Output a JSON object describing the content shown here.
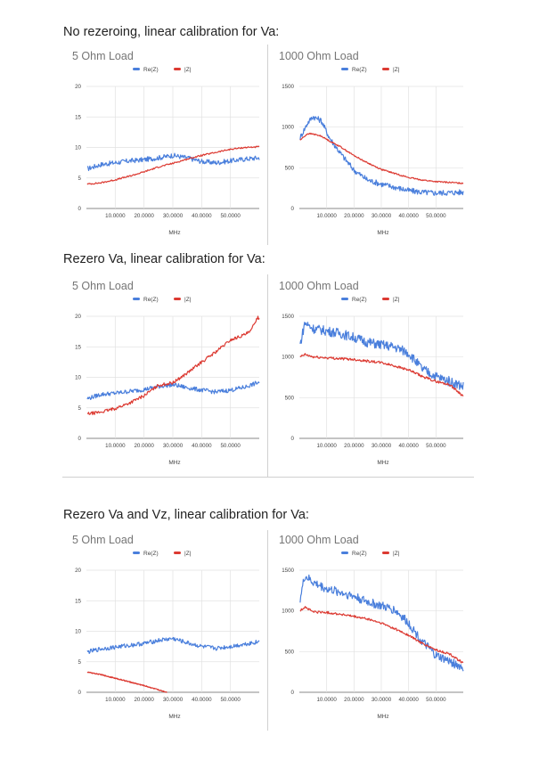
{
  "sections": [
    {
      "heading": "No rezeroing, linear calibration for Va:"
    },
    {
      "heading": "Rezero Va, linear calibration for Va:"
    },
    {
      "heading": "Rezero Va and Vz, linear calibration for Va:"
    }
  ],
  "colors": {
    "re": "#4a7fdc",
    "abs": "#dc3a32",
    "grid": "#e2e2e2",
    "axis": "#888888"
  },
  "chart_data": [
    {
      "type": "line",
      "title": "5 Ohm Load",
      "xlabel": "MHz",
      "ylabel": "",
      "xlim": [
        0,
        60
      ],
      "ylim": [
        0,
        20
      ],
      "yticks": [
        "0",
        "5",
        "10",
        "15",
        "20"
      ],
      "xticks": [
        "10.0000",
        "20.0000",
        "30.0000",
        "40.0000",
        "50.0000"
      ],
      "legend": "top-center",
      "series": [
        {
          "name": "Re(Z)",
          "x": [
            0.3,
            5,
            10,
            15,
            20,
            25,
            30,
            35,
            40,
            45,
            50,
            55,
            60
          ],
          "y": [
            6.5,
            7.2,
            7.5,
            7.8,
            8,
            8.3,
            8.7,
            8.3,
            7.7,
            7.5,
            7.8,
            8.1,
            8.3
          ],
          "noise": 0.4
        },
        {
          "name": "|Z|",
          "x": [
            0.3,
            5,
            10,
            15,
            20,
            25,
            30,
            35,
            40,
            45,
            50,
            55,
            60
          ],
          "y": [
            4,
            4.2,
            4.7,
            5.3,
            6,
            6.8,
            7.4,
            8.1,
            8.7,
            9.2,
            9.7,
            10,
            10.1
          ],
          "noise": 0.12
        }
      ]
    },
    {
      "type": "line",
      "title": "1000 Ohm Load",
      "xlabel": "MHz",
      "ylabel": "",
      "xlim": [
        0,
        60
      ],
      "ylim": [
        0,
        1500
      ],
      "yticks": [
        "0",
        "500",
        "1000",
        "1500"
      ],
      "xticks": [
        "10.0000",
        "20.0000",
        "30.0000",
        "40.0000",
        "50.0000"
      ],
      "legend": "top-center",
      "series": [
        {
          "name": "Re(Z)",
          "x": [
            0.3,
            3,
            5,
            8,
            11,
            15,
            20,
            25,
            30,
            35,
            40,
            45,
            50,
            55,
            60
          ],
          "y": [
            870,
            1050,
            1130,
            1080,
            870,
            680,
            470,
            350,
            300,
            260,
            220,
            200,
            190,
            195,
            200
          ],
          "noise": 35
        },
        {
          "name": "|Z|",
          "x": [
            0.3,
            3,
            5,
            8,
            11,
            15,
            20,
            25,
            30,
            35,
            40,
            45,
            50,
            55,
            60
          ],
          "y": [
            840,
            920,
            915,
            890,
            830,
            760,
            650,
            560,
            480,
            430,
            380,
            350,
            330,
            320,
            310
          ],
          "noise": 8
        }
      ]
    },
    {
      "type": "line",
      "title": "5 Ohm Load",
      "xlabel": "MHz",
      "ylabel": "",
      "xlim": [
        0,
        60
      ],
      "ylim": [
        0,
        20
      ],
      "yticks": [
        "0",
        "5",
        "10",
        "15",
        "20"
      ],
      "xticks": [
        "10.0000",
        "20.0000",
        "30.0000",
        "40.0000",
        "50.0000"
      ],
      "legend": "top-center",
      "series": [
        {
          "name": "Re(Z)",
          "x": [
            0.3,
            5,
            10,
            15,
            20,
            25,
            30,
            35,
            40,
            45,
            50,
            55,
            60
          ],
          "y": [
            6.5,
            7.2,
            7.4,
            7.7,
            8,
            8.5,
            8.8,
            8.3,
            7.9,
            7.6,
            7.9,
            8.4,
            9.2
          ],
          "noise": 0.35
        },
        {
          "name": "|Z|",
          "x": [
            0.3,
            5,
            10,
            15,
            20,
            25,
            30,
            35,
            40,
            45,
            50,
            55,
            57,
            59.5,
            60
          ],
          "y": [
            4,
            4.3,
            4.9,
            5.8,
            7,
            8.7,
            9.1,
            10.7,
            12.5,
            14.2,
            16.1,
            17,
            17.5,
            20,
            19.5
          ],
          "noise": 0.25
        }
      ]
    },
    {
      "type": "line",
      "title": "1000 Ohm Load",
      "xlabel": "MHz",
      "ylabel": "",
      "xlim": [
        0,
        60
      ],
      "ylim": [
        0,
        1500
      ],
      "yticks": [
        "0",
        "500",
        "1000",
        "1500"
      ],
      "xticks": [
        "10.0000",
        "20.0000",
        "30.0000",
        "40.0000",
        "50.0000"
      ],
      "legend": "top-center",
      "series": [
        {
          "name": "Re(Z)",
          "x": [
            0.3,
            2,
            5,
            10,
            15,
            20,
            25,
            30,
            35,
            40,
            45,
            50,
            55,
            60
          ],
          "y": [
            1150,
            1420,
            1350,
            1320,
            1290,
            1240,
            1180,
            1150,
            1120,
            1050,
            850,
            760,
            700,
            640
          ],
          "noise": 60
        },
        {
          "name": "|Z|",
          "x": [
            0.3,
            2,
            5,
            10,
            15,
            20,
            25,
            30,
            35,
            40,
            45,
            50,
            55,
            60
          ],
          "y": [
            1000,
            1030,
            1000,
            990,
            980,
            970,
            950,
            930,
            890,
            840,
            760,
            700,
            660,
            520
          ],
          "noise": 15
        }
      ]
    },
    {
      "type": "line",
      "title": "5 Ohm Load",
      "xlabel": "MHz",
      "ylabel": "",
      "xlim": [
        0,
        60
      ],
      "ylim": [
        0,
        20
      ],
      "yticks": [
        "0",
        "5",
        "10",
        "15",
        "20"
      ],
      "xticks": [
        "10.0000",
        "20.0000",
        "30.0000",
        "40.0000",
        "50.0000"
      ],
      "legend": "top-center",
      "series": [
        {
          "name": "Re(Z)",
          "x": [
            0.3,
            5,
            10,
            15,
            20,
            25,
            30,
            35,
            40,
            45,
            50,
            55,
            60
          ],
          "y": [
            6.6,
            7.1,
            7.4,
            7.7,
            8,
            8.5,
            8.8,
            8.1,
            7.5,
            7.2,
            7.5,
            7.9,
            8.3
          ],
          "noise": 0.35
        },
        {
          "name": "|Z|",
          "x": [
            0.3,
            5,
            10,
            15,
            20,
            25,
            28
          ],
          "y": [
            3.3,
            2.9,
            2.3,
            1.7,
            1.1,
            0.4,
            0
          ],
          "noise": 0.08
        }
      ]
    },
    {
      "type": "line",
      "title": "1000 Ohm Load",
      "xlabel": "MHz",
      "ylabel": "",
      "xlim": [
        0,
        60
      ],
      "ylim": [
        0,
        1500
      ],
      "yticks": [
        "0",
        "500",
        "1000",
        "1500"
      ],
      "xticks": [
        "10.0000",
        "20.0000",
        "30.0000",
        "40.0000",
        "50.0000"
      ],
      "legend": "top-center",
      "series": [
        {
          "name": "Re(Z)",
          "x": [
            0.3,
            2,
            5,
            10,
            15,
            20,
            25,
            30,
            35,
            40,
            45,
            50,
            55,
            60
          ],
          "y": [
            1150,
            1430,
            1350,
            1270,
            1230,
            1180,
            1110,
            1060,
            1010,
            850,
            620,
            450,
            380,
            300
          ],
          "noise": 55
        },
        {
          "name": "|Z|",
          "x": [
            0.3,
            2,
            5,
            10,
            15,
            20,
            25,
            30,
            35,
            40,
            45,
            50,
            55,
            60
          ],
          "y": [
            1000,
            1050,
            990,
            980,
            960,
            930,
            900,
            850,
            780,
            700,
            600,
            520,
            470,
            360
          ],
          "noise": 14
        }
      ]
    }
  ]
}
